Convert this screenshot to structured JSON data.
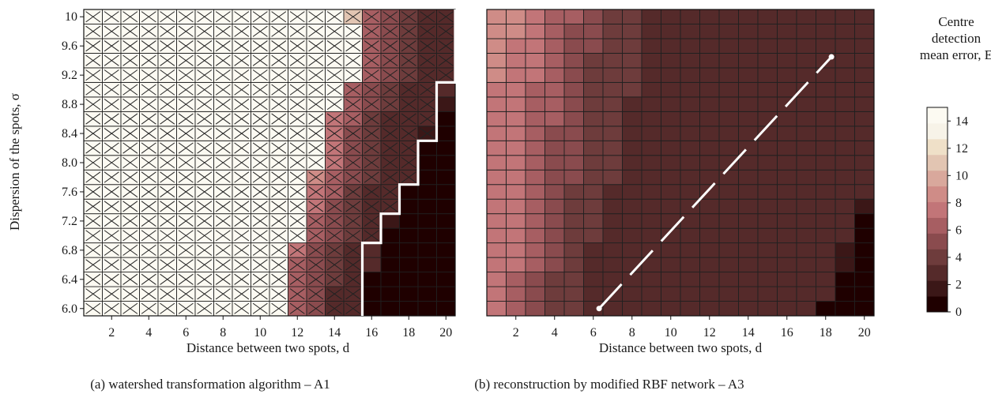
{
  "colors": {
    "scale": [
      "#1f0000",
      "#3b1717",
      "#552a2a",
      "#6e3c3c",
      "#8a4b4e",
      "#a75e62",
      "#c27578",
      "#cf8c87",
      "#d9a89c",
      "#e2c5b2",
      "#efe0c8",
      "#f7f3e8",
      "#fcfaf2"
    ],
    "boundary": "#ffffff",
    "cellBorder": "#202020"
  },
  "chart_data": [
    {
      "type": "heatmap",
      "panel": "a",
      "caption": "(a) watershed transformation algorithm – A1",
      "xlabel": "Distance between two spots, d",
      "ylabel": "Dispersion of the spots, σ",
      "x_ticks": [
        "2",
        "4",
        "6",
        "8",
        "10",
        "12",
        "14",
        "16",
        "18",
        "20"
      ],
      "y_ticks": [
        "6.0",
        "6.4",
        "6.8",
        "7.2",
        "7.6",
        "8.0",
        "8.4",
        "8.8",
        "9.2",
        "9.6",
        "10"
      ],
      "x": [
        1,
        2,
        3,
        4,
        5,
        6,
        7,
        8,
        9,
        10,
        11,
        12,
        13,
        14,
        15,
        16,
        17,
        18,
        19,
        20
      ],
      "y": [
        6.0,
        6.2,
        6.4,
        6.6,
        6.8,
        7.0,
        7.2,
        7.4,
        7.6,
        7.8,
        8.0,
        8.2,
        8.4,
        8.6,
        8.8,
        9.0,
        9.2,
        9.4,
        9.6,
        9.8,
        10.0
      ],
      "values": [
        [
          15,
          15,
          15,
          15,
          15,
          15,
          15,
          15,
          15,
          15,
          15,
          6,
          5,
          3,
          3,
          0,
          0,
          0,
          0,
          0
        ],
        [
          15,
          15,
          15,
          15,
          15,
          15,
          15,
          15,
          15,
          15,
          15,
          6,
          5,
          3,
          3,
          0,
          0,
          0,
          0,
          0
        ],
        [
          15,
          15,
          15,
          15,
          15,
          15,
          15,
          15,
          15,
          15,
          15,
          6,
          5,
          4,
          3,
          0,
          0,
          0,
          0,
          0
        ],
        [
          15,
          15,
          15,
          15,
          15,
          15,
          15,
          15,
          15,
          15,
          15,
          6,
          5,
          4,
          3,
          2,
          0,
          0,
          0,
          0
        ],
        [
          15,
          15,
          15,
          15,
          15,
          15,
          15,
          15,
          15,
          15,
          15,
          7,
          5,
          4,
          3,
          2,
          0,
          0,
          0,
          0
        ],
        [
          15,
          15,
          15,
          15,
          15,
          15,
          15,
          15,
          15,
          15,
          15,
          15,
          6,
          5,
          4,
          3,
          0,
          0,
          0,
          0
        ],
        [
          15,
          15,
          15,
          15,
          15,
          15,
          15,
          15,
          15,
          15,
          15,
          15,
          6,
          5,
          4,
          3,
          1,
          0,
          0,
          0
        ],
        [
          15,
          15,
          15,
          15,
          15,
          15,
          15,
          15,
          15,
          15,
          15,
          15,
          8,
          5,
          4,
          3,
          2,
          0,
          0,
          0
        ],
        [
          15,
          15,
          15,
          15,
          15,
          15,
          15,
          15,
          15,
          15,
          15,
          15,
          8,
          6,
          4,
          3,
          3,
          0,
          0,
          0
        ],
        [
          15,
          15,
          15,
          15,
          15,
          15,
          15,
          15,
          15,
          15,
          15,
          15,
          9,
          6,
          5,
          4,
          3,
          2,
          0,
          0
        ],
        [
          15,
          15,
          15,
          15,
          15,
          15,
          15,
          15,
          15,
          15,
          15,
          15,
          15,
          7,
          5,
          4,
          3,
          2,
          0,
          0
        ],
        [
          15,
          15,
          15,
          15,
          15,
          15,
          15,
          15,
          15,
          15,
          15,
          15,
          15,
          7,
          5,
          4,
          3,
          2,
          0,
          0
        ],
        [
          15,
          15,
          15,
          15,
          15,
          15,
          15,
          15,
          15,
          15,
          15,
          15,
          15,
          7,
          5,
          4,
          3,
          3,
          1,
          0
        ],
        [
          15,
          15,
          15,
          15,
          15,
          15,
          15,
          15,
          15,
          15,
          15,
          15,
          15,
          8,
          6,
          4,
          3,
          3,
          2,
          0
        ],
        [
          15,
          15,
          15,
          15,
          15,
          15,
          15,
          15,
          15,
          15,
          15,
          15,
          15,
          15,
          6,
          5,
          4,
          3,
          3,
          1
        ],
        [
          15,
          15,
          15,
          15,
          15,
          15,
          15,
          15,
          15,
          15,
          15,
          15,
          15,
          15,
          6,
          5,
          4,
          3,
          3,
          2
        ],
        [
          15,
          15,
          15,
          15,
          15,
          15,
          15,
          15,
          15,
          15,
          15,
          15,
          15,
          15,
          15,
          6,
          5,
          4,
          3,
          3
        ],
        [
          15,
          15,
          15,
          15,
          15,
          15,
          15,
          15,
          15,
          15,
          15,
          15,
          15,
          15,
          15,
          6,
          5,
          4,
          3,
          3
        ],
        [
          15,
          15,
          15,
          15,
          15,
          15,
          15,
          15,
          15,
          15,
          15,
          15,
          15,
          15,
          15,
          6,
          5,
          4,
          3,
          3
        ],
        [
          15,
          15,
          15,
          15,
          15,
          15,
          15,
          15,
          15,
          15,
          15,
          15,
          15,
          15,
          15,
          6,
          5,
          4,
          3,
          2
        ],
        [
          15,
          15,
          15,
          15,
          15,
          15,
          15,
          15,
          15,
          15,
          15,
          15,
          15,
          15,
          11,
          6,
          5,
          4,
          3,
          2
        ]
      ],
      "x_marked": true,
      "boundary_last_marked_col": [
        15,
        15,
        15,
        15,
        15,
        16,
        16,
        17,
        17,
        18,
        18,
        18,
        19,
        19,
        19,
        19,
        20,
        20,
        20,
        20,
        20
      ]
    },
    {
      "type": "heatmap",
      "panel": "b",
      "caption": "(b) reconstruction by modified RBF network – A3",
      "xlabel": "Distance between two spots, d",
      "x_ticks": [
        "2",
        "4",
        "6",
        "8",
        "10",
        "12",
        "14",
        "16",
        "18",
        "20"
      ],
      "x": [
        1,
        2,
        3,
        4,
        5,
        6,
        7,
        8,
        9,
        10,
        11,
        12,
        13,
        14,
        15,
        16,
        17,
        18,
        19,
        20
      ],
      "y": [
        6.0,
        6.2,
        6.4,
        6.6,
        6.8,
        7.0,
        7.2,
        7.4,
        7.6,
        7.8,
        8.0,
        8.2,
        8.4,
        8.6,
        8.8,
        9.0,
        9.2,
        9.4,
        9.6,
        9.8,
        10.0
      ],
      "values": [
        [
          7,
          6,
          5,
          4,
          4,
          3,
          3,
          3,
          3,
          3,
          3,
          3,
          3,
          3,
          3,
          3,
          3,
          0,
          0,
          0
        ],
        [
          7,
          6,
          5,
          4,
          4,
          3,
          3,
          3,
          3,
          3,
          3,
          3,
          3,
          3,
          3,
          3,
          3,
          2,
          0,
          0
        ],
        [
          7,
          6,
          5,
          4,
          4,
          3,
          3,
          3,
          3,
          3,
          3,
          3,
          3,
          3,
          3,
          3,
          3,
          2,
          0,
          0
        ],
        [
          7,
          7,
          6,
          5,
          4,
          3,
          3,
          3,
          3,
          3,
          3,
          3,
          3,
          3,
          3,
          3,
          3,
          3,
          1,
          0
        ],
        [
          7,
          7,
          6,
          5,
          4,
          3,
          3,
          3,
          3,
          3,
          3,
          3,
          3,
          3,
          3,
          3,
          3,
          3,
          1,
          0
        ],
        [
          7,
          7,
          6,
          5,
          4,
          4,
          3,
          3,
          3,
          3,
          3,
          3,
          3,
          3,
          3,
          3,
          3,
          3,
          2,
          0
        ],
        [
          8,
          7,
          6,
          5,
          4,
          4,
          3,
          3,
          3,
          3,
          3,
          3,
          3,
          3,
          3,
          3,
          3,
          3,
          2,
          0
        ],
        [
          8,
          7,
          6,
          5,
          4,
          4,
          3,
          3,
          3,
          3,
          3,
          3,
          3,
          3,
          3,
          3,
          3,
          3,
          3,
          1
        ],
        [
          8,
          7,
          6,
          5,
          4,
          4,
          3,
          3,
          3,
          3,
          3,
          3,
          3,
          3,
          3,
          3,
          3,
          3,
          3,
          2
        ],
        [
          8,
          7,
          6,
          5,
          5,
          4,
          4,
          3,
          3,
          3,
          3,
          3,
          3,
          3,
          3,
          3,
          3,
          3,
          3,
          3
        ],
        [
          8,
          7,
          6,
          5,
          5,
          4,
          4,
          3,
          3,
          3,
          3,
          3,
          3,
          3,
          3,
          3,
          3,
          3,
          3,
          3
        ],
        [
          8,
          7,
          6,
          5,
          5,
          4,
          4,
          3,
          3,
          3,
          3,
          3,
          3,
          3,
          3,
          3,
          3,
          3,
          3,
          3
        ],
        [
          8,
          8,
          6,
          5,
          5,
          4,
          4,
          3,
          3,
          3,
          3,
          3,
          3,
          3,
          3,
          3,
          3,
          3,
          3,
          3
        ],
        [
          8,
          8,
          6,
          6,
          5,
          4,
          4,
          3,
          3,
          3,
          3,
          3,
          3,
          3,
          3,
          3,
          3,
          3,
          3,
          3
        ],
        [
          8,
          8,
          6,
          6,
          5,
          4,
          4,
          3,
          3,
          3,
          3,
          3,
          3,
          3,
          3,
          3,
          3,
          3,
          3,
          3
        ],
        [
          8,
          8,
          6,
          6,
          5,
          4,
          4,
          4,
          3,
          3,
          3,
          3,
          3,
          3,
          3,
          3,
          3,
          3,
          3,
          3
        ],
        [
          9,
          8,
          7,
          6,
          5,
          4,
          4,
          4,
          3,
          3,
          3,
          3,
          3,
          3,
          3,
          3,
          3,
          3,
          3,
          3
        ],
        [
          9,
          8,
          7,
          6,
          5,
          4,
          4,
          4,
          3,
          3,
          3,
          3,
          3,
          3,
          3,
          3,
          3,
          3,
          3,
          3
        ],
        [
          9,
          8,
          7,
          6,
          5,
          5,
          4,
          4,
          3,
          3,
          3,
          3,
          3,
          3,
          3,
          3,
          3,
          3,
          3,
          3
        ],
        [
          9,
          9,
          7,
          6,
          5,
          5,
          4,
          4,
          3,
          3,
          3,
          3,
          3,
          3,
          3,
          3,
          3,
          3,
          3,
          3
        ],
        [
          9,
          9,
          7,
          6,
          6,
          5,
          4,
          4,
          3,
          3,
          3,
          3,
          3,
          3,
          3,
          3,
          3,
          3,
          3,
          3
        ]
      ],
      "line": {
        "style": "dashed",
        "color": "#ffffff",
        "from": [
          6.3,
          6.0
        ],
        "to": [
          18.3,
          9.45
        ]
      }
    }
  ],
  "colorbar": {
    "title_lines": [
      "Centre",
      "detection",
      "mean error, E"
    ],
    "ticks": [
      "0",
      "2",
      "4",
      "6",
      "8",
      "10",
      "12",
      "14"
    ],
    "range": [
      0,
      15
    ]
  }
}
